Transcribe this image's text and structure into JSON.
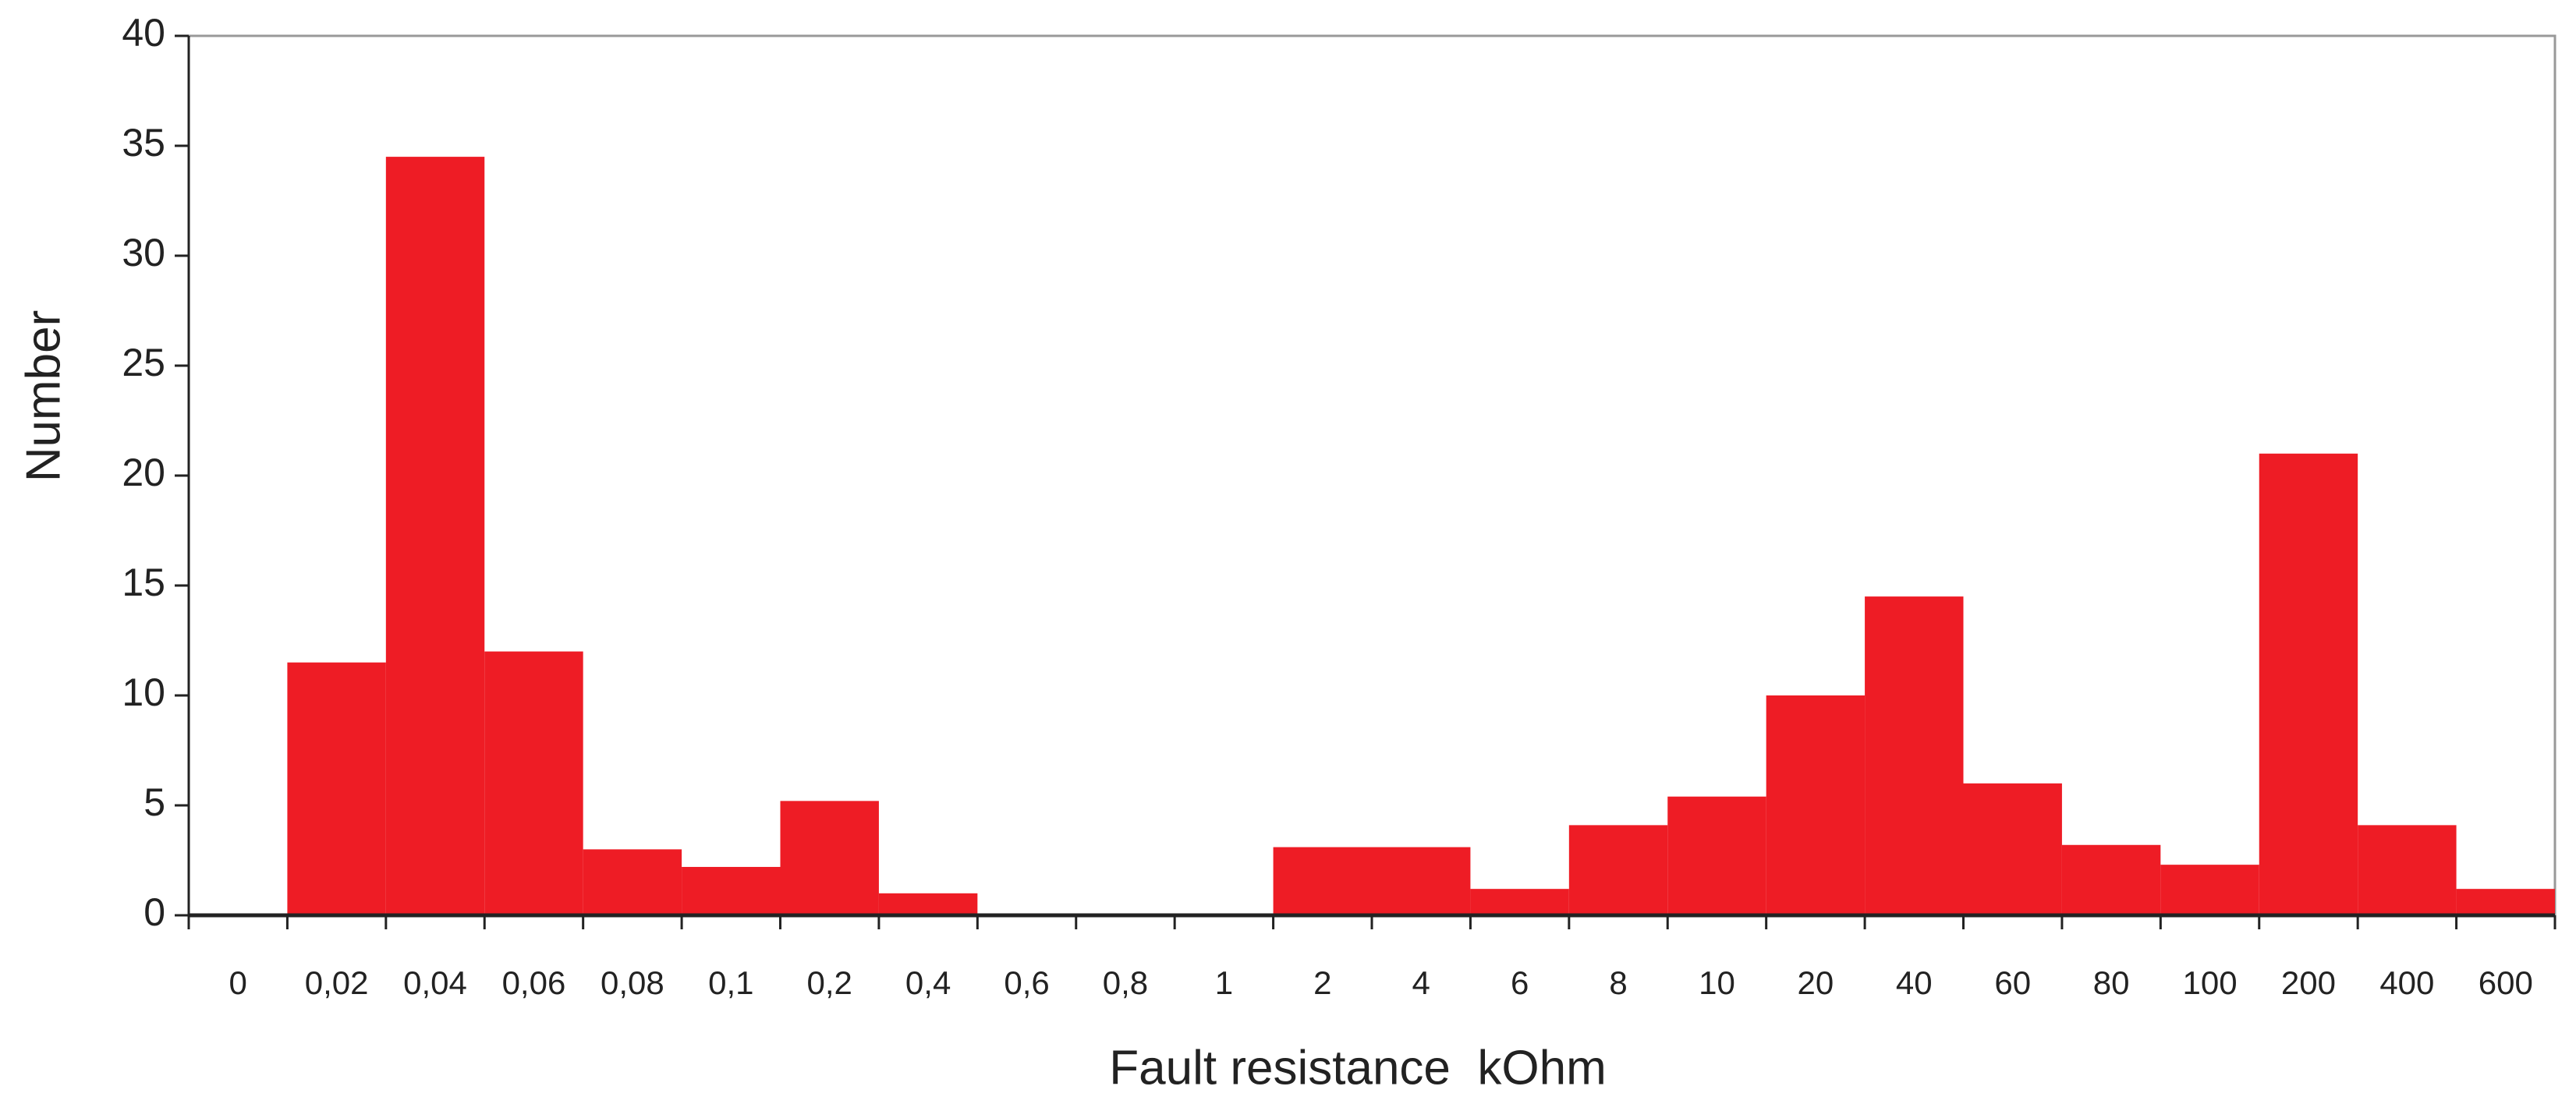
{
  "chart_data": {
    "type": "bar",
    "x_label": "Fault resistance  kOhm",
    "y_label": "Number",
    "categories": [
      "0",
      "0,02",
      "0,04",
      "0,06",
      "0,08",
      "0,1",
      "0,2",
      "0,4",
      "0,6",
      "0,8",
      "1",
      "2",
      "4",
      "6",
      "8",
      "10",
      "20",
      "40",
      "60",
      "80",
      "100",
      "200",
      "400",
      "600"
    ],
    "values": [
      0,
      11.5,
      34.5,
      12,
      3,
      2.2,
      5.2,
      1,
      0,
      0,
      0,
      3.1,
      3.1,
      1.2,
      4.1,
      5.4,
      10,
      14.5,
      6,
      3.2,
      2.3,
      21,
      4.1,
      1.2
    ],
    "color": "#ee1c25",
    "ylim": [
      0,
      40
    ],
    "yticks": [
      0,
      5,
      10,
      15,
      20,
      25,
      30,
      35,
      40
    ],
    "grid": false
  }
}
